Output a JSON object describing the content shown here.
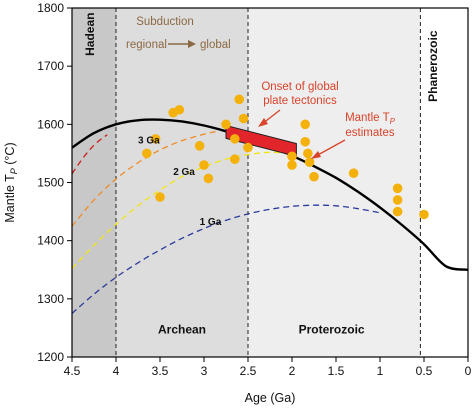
{
  "chart_data": {
    "type": "scatter",
    "xlabel": "Age (Ga)",
    "ylabel_main": "Mantle T",
    "ylabel_sub": "P",
    "ylabel_unit": " (°C)",
    "xlim": [
      4.5,
      0
    ],
    "ylim": [
      1200,
      1800
    ],
    "xticks": [
      4.5,
      4,
      3.5,
      3,
      2.5,
      2,
      1.5,
      1,
      0.5,
      0
    ],
    "xtick_labels": [
      "4.5",
      "4",
      "3.5",
      "3",
      "2.5",
      "2",
      "1.5",
      "1",
      "0.5",
      "0"
    ],
    "yticks": [
      1200,
      1300,
      1400,
      1500,
      1600,
      1700,
      1800
    ],
    "eons": [
      {
        "name": "Hadean",
        "from": 4.5,
        "to": 4.0,
        "color": "#c8c8c8",
        "label_x": 4.25,
        "label_y": 1755,
        "vertical": true
      },
      {
        "name": "Archean",
        "from": 4.0,
        "to": 2.5,
        "color": "#dddddd",
        "label_x": 3.25,
        "label_y": 1240,
        "vertical": false
      },
      {
        "name": "Proterozoic",
        "from": 2.5,
        "to": 0.541,
        "color": "#eeeeee",
        "label_x": 1.55,
        "label_y": 1240,
        "vertical": false
      },
      {
        "name": "Phanerozoic",
        "from": 0.541,
        "to": 0.0,
        "color": "#ffffff",
        "label_x": 0.35,
        "label_y": 1700,
        "vertical": true
      }
    ],
    "subduction_note": {
      "line1": "Subduction",
      "line2a": "regional",
      "line2b": "global",
      "color": "#8b6a43"
    },
    "annotations": [
      {
        "id": "onset",
        "lines": [
          "Onset of global",
          "plate tectonics"
        ],
        "color": "#d8432a"
      },
      {
        "id": "estimates",
        "lines": [
          "Mantle T",
          "estimates"
        ],
        "sub": "P",
        "color": "#d8432a"
      }
    ],
    "series": [
      {
        "style": "model-black",
        "color": "#000000",
        "x": [
          4.5,
          4.25,
          4.0,
          3.75,
          3.5,
          3.25,
          3.0,
          2.75,
          2.5,
          2.25,
          2.0,
          1.75,
          1.5,
          1.25,
          1.0,
          0.75,
          0.5,
          0.25,
          0.0
        ],
        "y": [
          1560,
          1585,
          1600,
          1607,
          1608,
          1605,
          1598,
          1588,
          1575,
          1562,
          1546,
          1528,
          1508,
          1484,
          1457,
          1427,
          1394,
          1356,
          1350
        ]
      },
      {
        "style": "dashed",
        "color": "#cc1f1f",
        "label": "",
        "x": [
          4.5,
          4.4,
          4.3,
          4.2,
          4.1
        ],
        "y": [
          1515,
          1537,
          1556,
          1571,
          1582
        ]
      },
      {
        "style": "dashed",
        "color": "#f08a25",
        "label": "3 Ga",
        "x": [
          4.5,
          4.25,
          4.0,
          3.75,
          3.5,
          3.25,
          3.0,
          2.85
        ],
        "y": [
          1425,
          1470,
          1506,
          1534,
          1556,
          1572,
          1583,
          1588
        ]
      },
      {
        "style": "dashed",
        "color": "#f2e515",
        "label": "2 Ga",
        "x": [
          4.5,
          4.25,
          4.0,
          3.75,
          3.5,
          3.25,
          3.0,
          2.75,
          2.5,
          2.25,
          2.0
        ],
        "y": [
          1352,
          1392,
          1428,
          1460,
          1487,
          1510,
          1527,
          1540,
          1548,
          1552,
          1550
        ]
      },
      {
        "style": "dashed",
        "color": "#2b3b9c",
        "label": "1 Ga",
        "x": [
          4.5,
          4.25,
          4.0,
          3.75,
          3.5,
          3.25,
          3.0,
          2.75,
          2.5,
          2.25,
          2.0,
          1.75,
          1.5,
          1.25,
          1.0
        ],
        "y": [
          1275,
          1308,
          1337,
          1362,
          1384,
          1404,
          1421,
          1435,
          1446,
          1454,
          1459,
          1461,
          1460,
          1455,
          1448
        ]
      }
    ],
    "series_labels": [
      {
        "text": "3 Ga",
        "x": 3.75,
        "y": 1567
      },
      {
        "text": "2 Ga",
        "x": 3.35,
        "y": 1513
      },
      {
        "text": "1 Ga",
        "x": 3.05,
        "y": 1427
      }
    ],
    "points": {
      "color": "#f5b10b",
      "x": [
        3.35,
        3.28,
        3.55,
        3.65,
        3.5,
        3.05,
        3.0,
        2.95,
        2.75,
        2.65,
        2.65,
        2.55,
        2.6,
        2.5,
        2.0,
        2.0,
        1.85,
        1.85,
        1.82,
        1.8,
        1.75,
        1.3,
        0.8,
        0.8,
        0.8,
        0.5
      ],
      "y": [
        1620,
        1625,
        1575,
        1550,
        1475,
        1563,
        1530,
        1507,
        1600,
        1575,
        1540,
        1610,
        1643,
        1560,
        1545,
        1530,
        1600,
        1570,
        1550,
        1535,
        1510,
        1516,
        1490,
        1470,
        1450,
        1445
      ]
    },
    "band": {
      "color": "#e1252a",
      "edge": "#222222",
      "x_from": 2.75,
      "x_to": 1.95,
      "y_top_from": 1598,
      "y_top_to": 1567,
      "y_bot_from": 1576,
      "y_bot_to": 1545
    },
    "grid": false
  }
}
